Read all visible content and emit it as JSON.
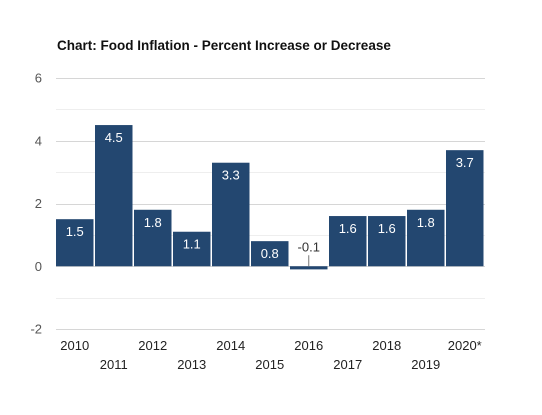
{
  "chart_data": {
    "type": "bar",
    "title": "Chart: Food Inflation - Percent Increase or Decrease",
    "categories": [
      "2010",
      "2011",
      "2012",
      "2013",
      "2014",
      "2015",
      "2016",
      "2017",
      "2018",
      "2019",
      "2020*"
    ],
    "values": [
      1.5,
      4.5,
      1.8,
      1.1,
      3.3,
      0.8,
      -0.1,
      1.6,
      1.6,
      1.8,
      3.7
    ],
    "data_labels": [
      "1.5",
      "4.5",
      "1.8",
      "1.1",
      "3.3",
      "0.8",
      "-0.1",
      "1.6",
      "1.6",
      "1.8",
      "3.7"
    ],
    "yticks": [
      "-2",
      "0",
      "2",
      "4",
      "6"
    ],
    "ylim": [
      -2,
      6
    ],
    "grid": true,
    "legend": "none",
    "bar_color": "#234770",
    "label_color_inside": "#ffffff",
    "label_color_outside": "#333333"
  }
}
